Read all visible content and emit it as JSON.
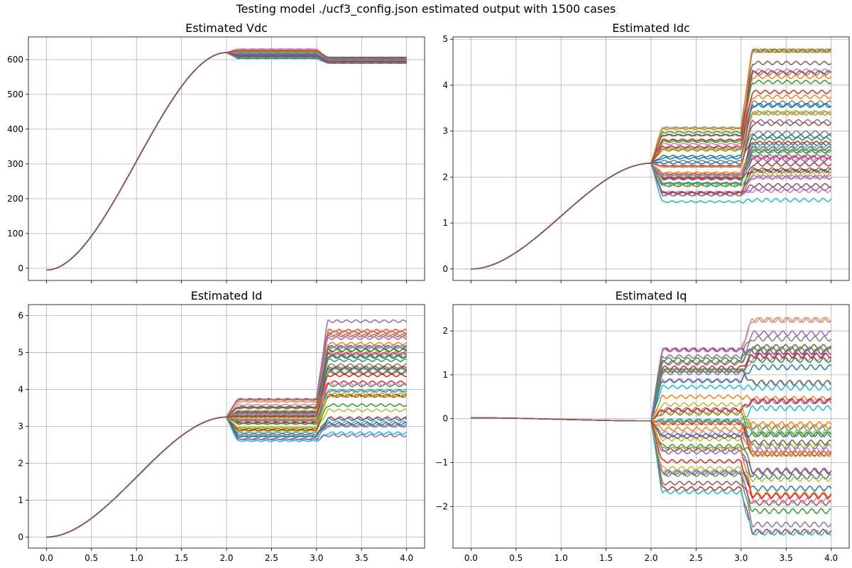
{
  "figure": {
    "suptitle": "Testing model ./ucf3_config.json estimated output with 1500 cases"
  },
  "palette": [
    "#1f77b4",
    "#ff7f0e",
    "#2ca02c",
    "#d62728",
    "#9467bd",
    "#8c564b",
    "#e377c2",
    "#7f7f7f",
    "#bcbd22",
    "#17becf"
  ],
  "chart_data": [
    {
      "type": "line",
      "title": "Estimated Vdc",
      "xlim": [
        -0.2,
        4.2
      ],
      "ylim": [
        -35,
        665
      ],
      "xticks": [
        0.0,
        0.5,
        1.0,
        1.5,
        2.0,
        2.5,
        3.0,
        3.5,
        4.0
      ],
      "xtick_labels_visible": false,
      "yticks": [
        0,
        100,
        200,
        300,
        400,
        500,
        600
      ],
      "ytick_labels": [
        "0",
        "100",
        "200",
        "300",
        "400",
        "500",
        "600"
      ],
      "grid": true,
      "series_count": 1500,
      "ramp": {
        "start": -5,
        "end": 620,
        "t_end": 2.0
      },
      "segment1": {
        "t": [
          2.0,
          3.0
        ],
        "min": 600,
        "max": 630
      },
      "segment2": {
        "t": [
          3.0,
          4.0
        ],
        "min": 588,
        "max": 608
      },
      "x_range": [
        0.0,
        4.0
      ]
    },
    {
      "type": "line",
      "title": "Estimated Idc",
      "xlim": [
        -0.2,
        4.2
      ],
      "ylim": [
        -0.25,
        5.05
      ],
      "xticks": [
        0.0,
        0.5,
        1.0,
        1.5,
        2.0,
        2.5,
        3.0,
        3.5,
        4.0
      ],
      "xtick_labels_visible": false,
      "yticks": [
        0,
        1,
        2,
        3,
        4,
        5
      ],
      "ytick_labels": [
        "0",
        "1",
        "2",
        "3",
        "4",
        "5"
      ],
      "grid": true,
      "series_count": 1500,
      "ramp": {
        "start": 0,
        "end": 2.3,
        "t_end": 2.0
      },
      "segment1": {
        "t": [
          2.0,
          3.0
        ],
        "min": 1.45,
        "max": 3.1
      },
      "segment2": {
        "t": [
          3.0,
          4.0
        ],
        "min": 1.5,
        "max": 4.75
      },
      "x_range": [
        0.0,
        4.0
      ]
    },
    {
      "type": "line",
      "title": "Estimated Id",
      "xlim": [
        -0.2,
        4.2
      ],
      "ylim": [
        -0.3,
        6.3
      ],
      "xticks": [
        0.0,
        0.5,
        1.0,
        1.5,
        2.0,
        2.5,
        3.0,
        3.5,
        4.0
      ],
      "xtick_labels": [
        "0.0",
        "0.5",
        "1.0",
        "1.5",
        "2.0",
        "2.5",
        "3.0",
        "3.5",
        "4.0"
      ],
      "xtick_labels_visible": true,
      "yticks": [
        0,
        1,
        2,
        3,
        4,
        5,
        6
      ],
      "ytick_labels": [
        "0",
        "1",
        "2",
        "3",
        "4",
        "5",
        "6"
      ],
      "grid": true,
      "series_count": 1500,
      "ramp": {
        "start": 0,
        "end": 3.25,
        "t_end": 2.0
      },
      "segment1": {
        "t": [
          2.0,
          3.0
        ],
        "min": 2.6,
        "max": 3.75
      },
      "segment2": {
        "t": [
          3.0,
          4.0
        ],
        "min": 2.75,
        "max": 5.85
      },
      "x_range": [
        0.0,
        4.0
      ]
    },
    {
      "type": "line",
      "title": "Estimated Iq",
      "xlim": [
        -0.2,
        4.2
      ],
      "ylim": [
        -2.95,
        2.6
      ],
      "xticks": [
        0.0,
        0.5,
        1.0,
        1.5,
        2.0,
        2.5,
        3.0,
        3.5,
        4.0
      ],
      "xtick_labels": [
        "0.0",
        "0.5",
        "1.0",
        "1.5",
        "2.0",
        "2.5",
        "3.0",
        "3.5",
        "4.0"
      ],
      "xtick_labels_visible": true,
      "yticks": [
        -2,
        -1,
        0,
        1,
        2
      ],
      "ytick_labels": [
        "−2",
        "−1",
        "0",
        "1",
        "2"
      ],
      "grid": true,
      "series_count": 1500,
      "ramp": {
        "start": 0.02,
        "end": -0.05,
        "t_end": 2.0
      },
      "segment1": {
        "t": [
          2.0,
          3.0
        ],
        "min": -1.7,
        "max": 1.7
      },
      "segment2": {
        "t": [
          3.0,
          4.0
        ],
        "min": -2.6,
        "max": 2.25
      },
      "x_range": [
        0.0,
        4.0
      ]
    }
  ]
}
